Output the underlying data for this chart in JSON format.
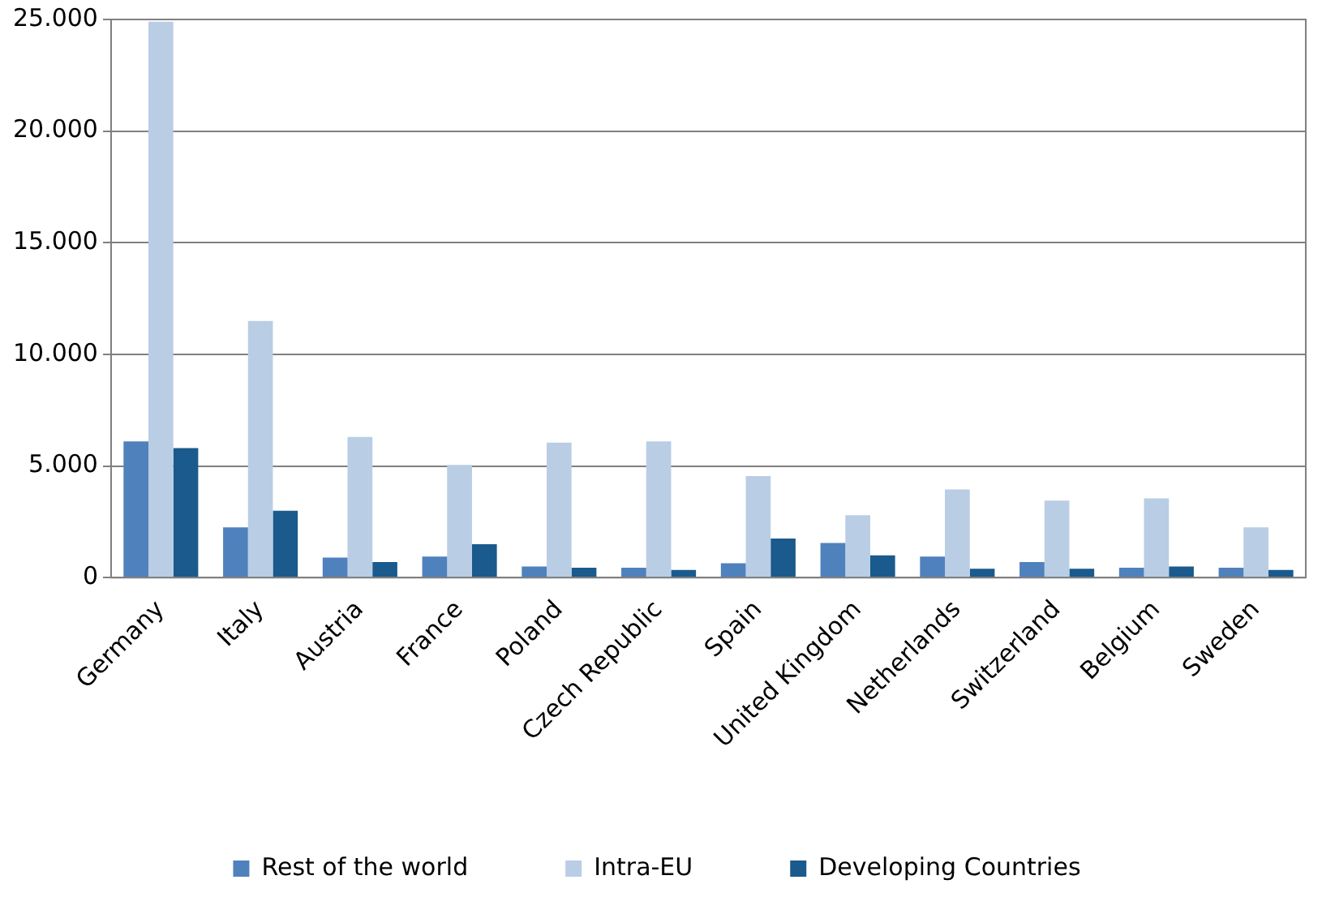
{
  "chart_data": {
    "type": "bar",
    "categories": [
      "Germany",
      "Italy",
      "Austria",
      "France",
      "Poland",
      "Czech Republic",
      "Spain",
      "United Kingdom",
      "Netherlands",
      "Switzerland",
      "Belgium",
      "Sweden"
    ],
    "series": [
      {
        "name": "Rest of the world",
        "color": "#4f81bd",
        "values": [
          6100,
          2250,
          900,
          950,
          500,
          450,
          650,
          1550,
          950,
          700,
          450,
          450
        ]
      },
      {
        "name": "Intra-EU",
        "color": "#b9cde5",
        "values": [
          24900,
          11500,
          6300,
          5050,
          6050,
          6100,
          4550,
          2800,
          3950,
          3450,
          3550,
          2250
        ]
      },
      {
        "name": "Developing Countries",
        "color": "#1a5a8c",
        "values": [
          5800,
          3000,
          700,
          1500,
          450,
          350,
          1750,
          1000,
          400,
          400,
          500,
          350
        ]
      }
    ],
    "ylim": [
      0,
      25000
    ],
    "yticks": [
      {
        "value": 0,
        "label": "0"
      },
      {
        "value": 5000,
        "label": "5.000"
      },
      {
        "value": 10000,
        "label": "10.000"
      },
      {
        "value": 15000,
        "label": "15.000"
      },
      {
        "value": 20000,
        "label": "20.000"
      },
      {
        "value": 25000,
        "label": "25.000"
      }
    ],
    "grid": "y",
    "legend": "bottom"
  }
}
